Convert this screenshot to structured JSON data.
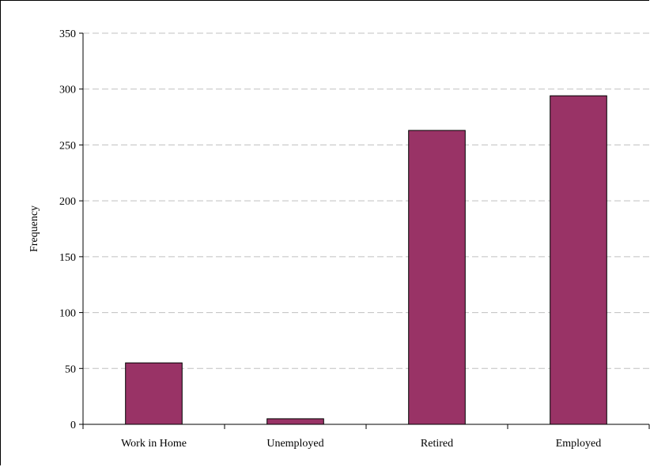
{
  "chart_data": {
    "type": "bar",
    "title": "",
    "xlabel": "",
    "ylabel": "Frequency",
    "categories": [
      "Work in Home",
      "Unemployed",
      "Retired",
      "Employed"
    ],
    "values": [
      55,
      5,
      263,
      294
    ],
    "ylim": [
      0,
      350
    ],
    "yticks": [
      0,
      50,
      100,
      150,
      200,
      250,
      300,
      350
    ],
    "grid": true,
    "legend": "none",
    "bar_color": "#993366",
    "bar_edge_color": "#000000",
    "grid_color": "#c0c0c0"
  }
}
